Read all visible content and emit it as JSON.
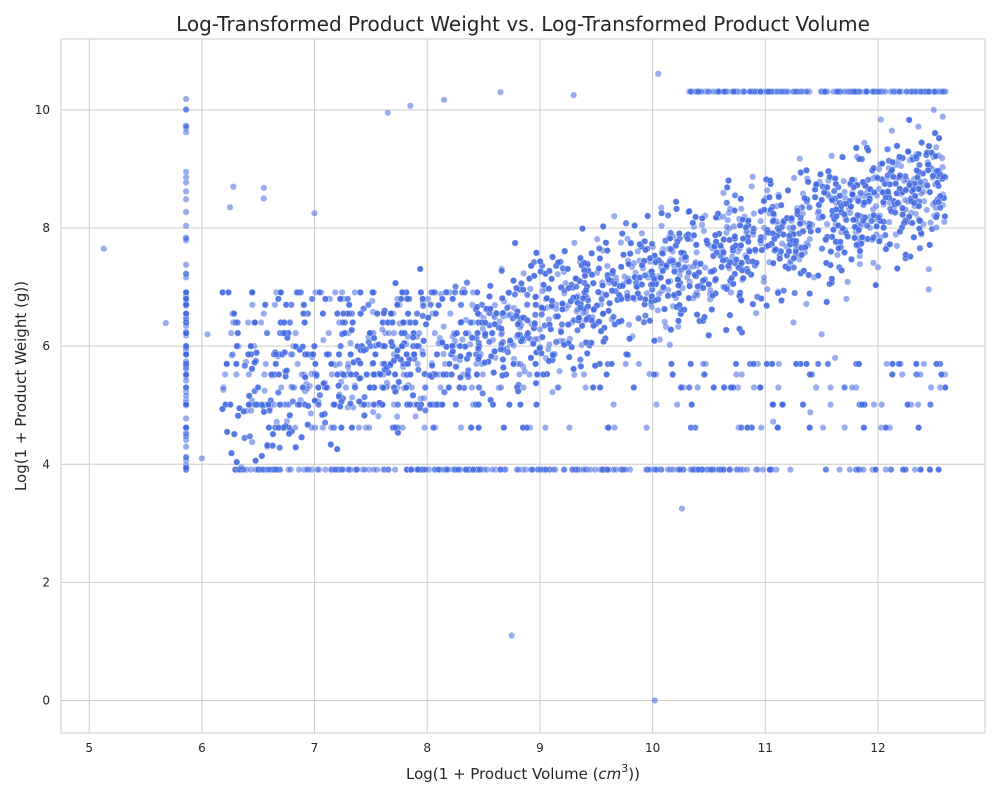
{
  "chart_data": {
    "type": "scatter",
    "title": "Log-Transformed Product Weight vs. Log-Transformed Product Volume",
    "xlabel_prefix": "Log(1 + Product Volume (",
    "xlabel_unit": "cm",
    "xlabel_exp": "3",
    "xlabel_suffix": "))",
    "ylabel": "Log(1 + Product Weight (g))",
    "xlim": [
      4.75,
      12.95
    ],
    "ylim": [
      -0.55,
      11.2
    ],
    "xticks": [
      5,
      6,
      7,
      8,
      9,
      10,
      11,
      12
    ],
    "yticks": [
      0,
      2,
      4,
      6,
      8,
      10
    ],
    "grid": true,
    "point_color": "#4169e1",
    "point_opacity": 0.55,
    "cluster": {
      "x_range": [
        5.86,
        12.6
      ],
      "trend": {
        "slope": 0.62,
        "intercept": 0.97
      },
      "y_floor": 3.91,
      "y_cap": 10.31,
      "weight_levels": [
        3.91,
        4.62,
        5.01,
        5.3,
        5.52,
        5.7,
        5.86,
        6.0,
        6.22,
        6.4,
        6.55,
        6.7,
        6.8,
        6.91
      ],
      "volume_column_x": 5.86
    },
    "points": [
      {
        "x": 5.13,
        "y": 7.65
      },
      {
        "x": 5.68,
        "y": 6.39
      },
      {
        "x": 8.75,
        "y": 1.1
      },
      {
        "x": 10.02,
        "y": 0.0
      },
      {
        "x": 10.26,
        "y": 3.25
      },
      {
        "x": 10.05,
        "y": 10.61
      },
      {
        "x": 12.52,
        "y": 8.01
      },
      {
        "x": 12.45,
        "y": 6.96
      },
      {
        "x": 12.2,
        "y": 5.7
      },
      {
        "x": 11.62,
        "y": 5.8
      },
      {
        "x": 11.4,
        "y": 4.88
      },
      {
        "x": 11.07,
        "y": 4.72
      },
      {
        "x": 11.77,
        "y": 5.3
      },
      {
        "x": 12.33,
        "y": 3.91
      },
      {
        "x": 12.07,
        "y": 3.91
      },
      {
        "x": 11.87,
        "y": 3.91
      },
      {
        "x": 11.75,
        "y": 3.91
      },
      {
        "x": 6.28,
        "y": 8.7
      },
      {
        "x": 6.25,
        "y": 8.35
      },
      {
        "x": 6.55,
        "y": 8.68
      },
      {
        "x": 6.55,
        "y": 8.5
      },
      {
        "x": 7.0,
        "y": 8.25
      },
      {
        "x": 7.65,
        "y": 9.95
      },
      {
        "x": 7.85,
        "y": 10.07
      },
      {
        "x": 8.15,
        "y": 10.17
      },
      {
        "x": 8.65,
        "y": 10.3
      },
      {
        "x": 9.3,
        "y": 10.25
      },
      {
        "x": 12.1,
        "y": 8.1
      },
      {
        "x": 11.95,
        "y": 7.8
      },
      {
        "x": 11.5,
        "y": 6.2
      },
      {
        "x": 11.72,
        "y": 6.8
      },
      {
        "x": 11.25,
        "y": 6.4
      },
      {
        "x": 10.9,
        "y": 5.3
      },
      {
        "x": 6.0,
        "y": 4.1
      },
      {
        "x": 6.05,
        "y": 6.2
      },
      {
        "x": 6.35,
        "y": 3.95
      }
    ]
  }
}
